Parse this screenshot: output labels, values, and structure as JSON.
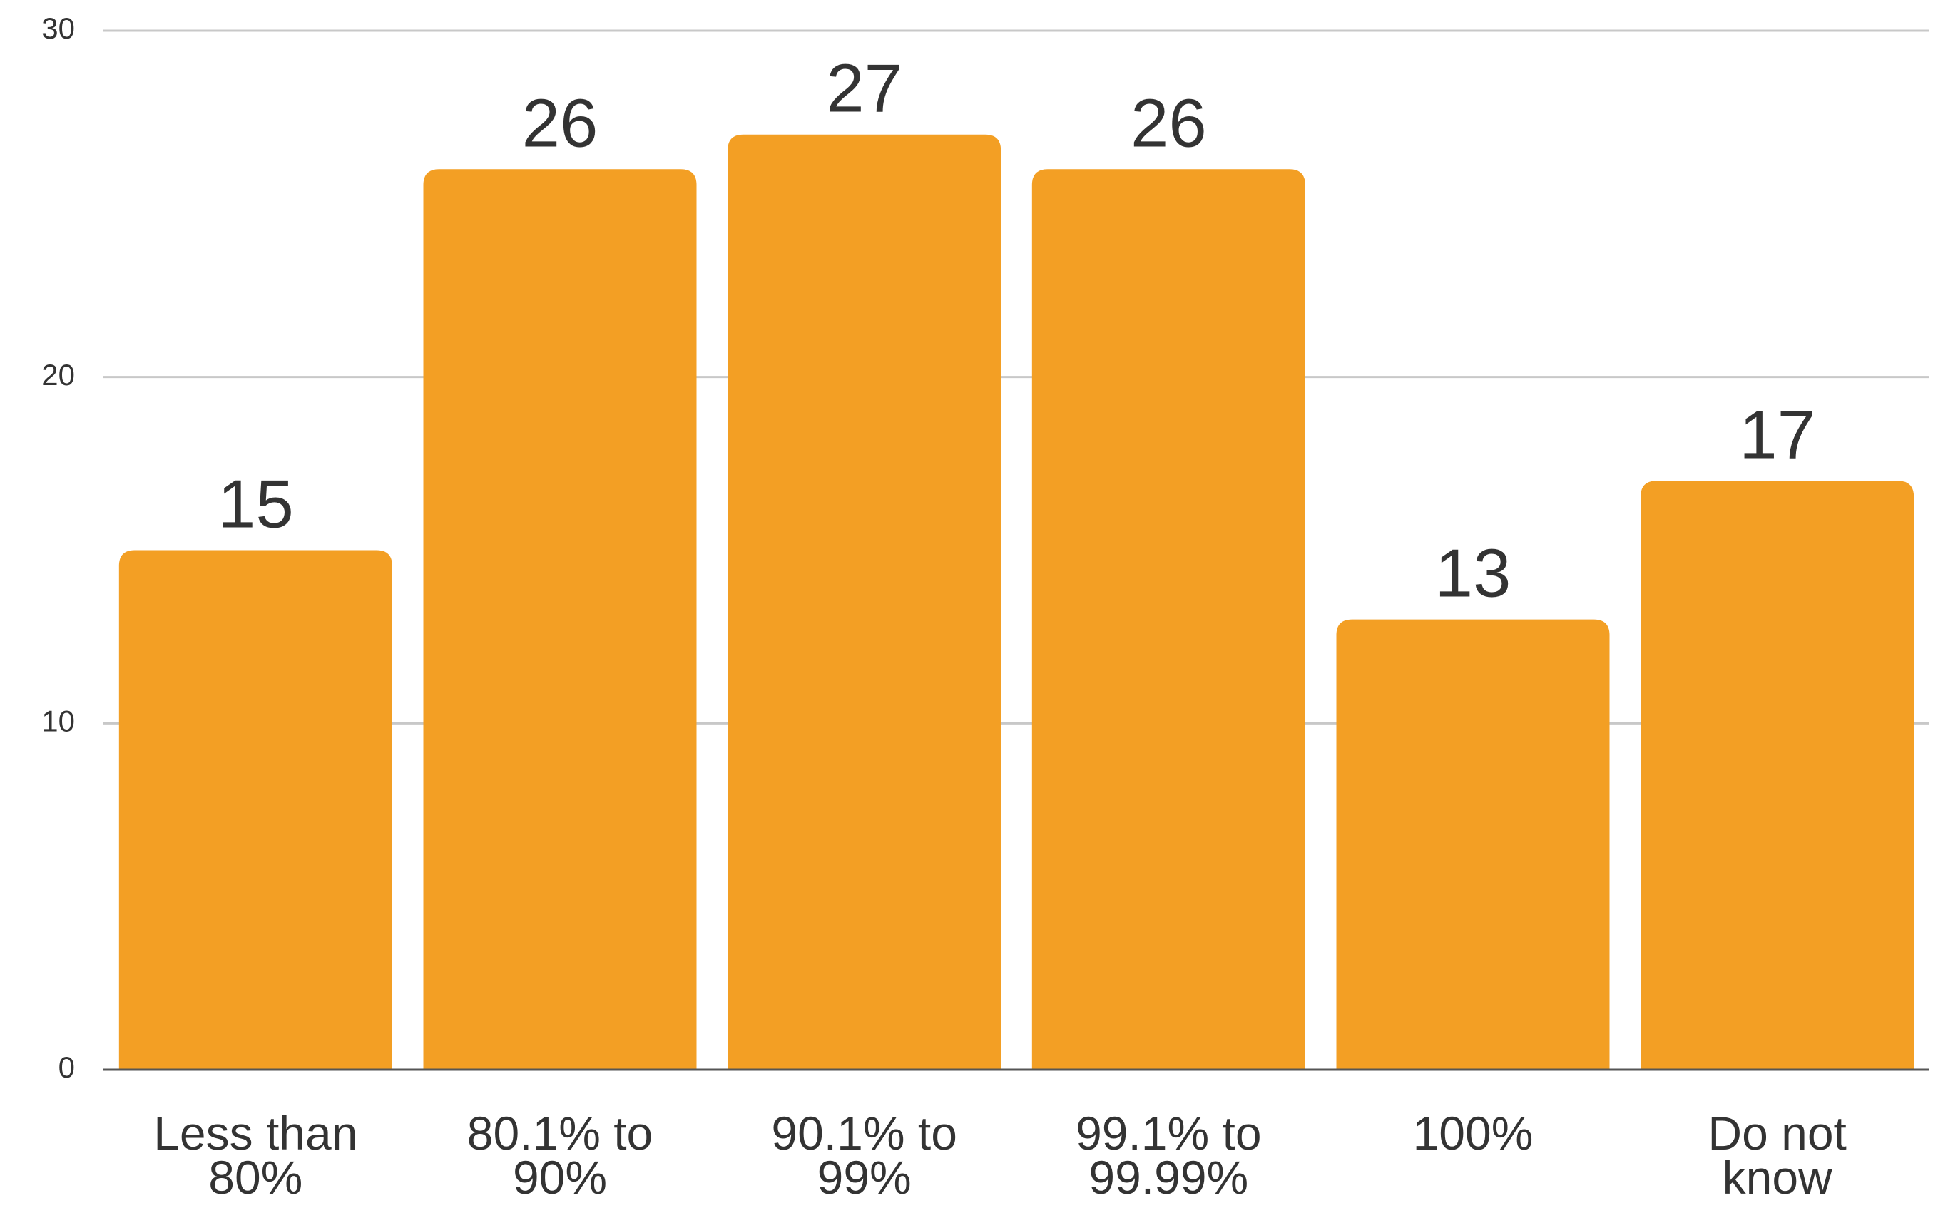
{
  "chart_data": {
    "type": "bar",
    "categories": [
      [
        "Less than",
        "80%"
      ],
      [
        "80.1% to",
        "90%"
      ],
      [
        "90.1% to",
        "99%"
      ],
      [
        "99.1% to",
        "99.99%"
      ],
      [
        "100%"
      ],
      [
        "Do not",
        "know"
      ]
    ],
    "values": [
      15,
      26,
      27,
      26,
      13,
      17
    ],
    "data_labels": [
      "15",
      "26",
      "27",
      "26",
      "13",
      "17"
    ],
    "yticks": [
      0,
      10,
      20,
      30
    ],
    "ylim": [
      0,
      30
    ],
    "title": "",
    "xlabel": "",
    "ylabel": "",
    "grid": true,
    "legend": "none",
    "colors": {
      "bar": "#F39F24",
      "grid": "#C8C8C8",
      "axis": "#555555",
      "text": "#333333"
    }
  }
}
